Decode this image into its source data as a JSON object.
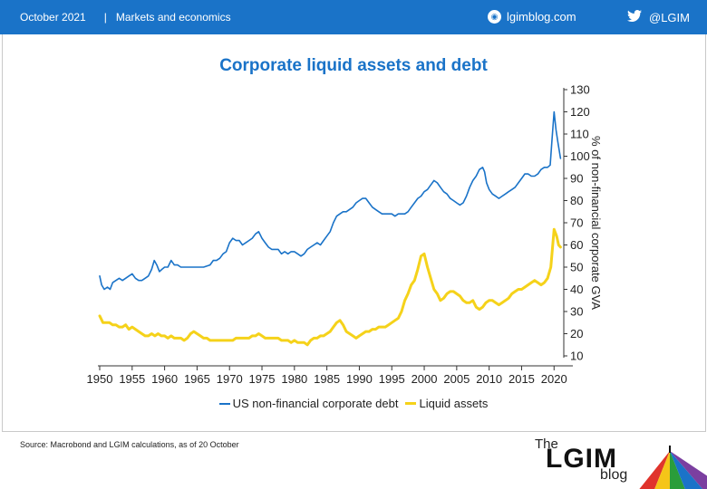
{
  "header": {
    "date": "October 2021",
    "separator": "|",
    "section": "Markets and economics",
    "site": "lgimblog.com",
    "twitter": "@LGIM",
    "colors": {
      "bar": "#1a73c8",
      "text": "#ffffff"
    }
  },
  "footer": {
    "source": "Source: Macrobond and LGIM  calculations, as of 20 October",
    "logo_the": "The",
    "logo_main": "LGIM",
    "logo_blog": "blog"
  },
  "chart_data": {
    "type": "line",
    "title": "Corporate liquid assets and debt",
    "ylabel": "% of non-financial corporate GVA",
    "xlabel": "",
    "xlim": [
      1950,
      2021.5
    ],
    "ylim": [
      10,
      130
    ],
    "yticks": [
      10,
      20,
      30,
      40,
      50,
      60,
      70,
      80,
      90,
      100,
      110,
      120,
      130
    ],
    "xticks": [
      1950,
      1955,
      1960,
      1965,
      1970,
      1975,
      1980,
      1985,
      1990,
      1995,
      2000,
      2005,
      2010,
      2015,
      2020
    ],
    "yaxis_position": "right",
    "grid": false,
    "legend": "bottom",
    "series": [
      {
        "name": "US non-financial corporate debt",
        "color": "#1a73c8",
        "points": [
          [
            1950,
            46
          ],
          [
            1950.3,
            42
          ],
          [
            1950.7,
            40
          ],
          [
            1951.2,
            41
          ],
          [
            1951.6,
            40
          ],
          [
            1952,
            43
          ],
          [
            1952.5,
            44
          ],
          [
            1953,
            45
          ],
          [
            1953.5,
            44
          ],
          [
            1954,
            45
          ],
          [
            1954.5,
            46
          ],
          [
            1955,
            47
          ],
          [
            1955.5,
            45
          ],
          [
            1956,
            44
          ],
          [
            1956.5,
            44
          ],
          [
            1957,
            45
          ],
          [
            1957.5,
            46
          ],
          [
            1958,
            49
          ],
          [
            1958.4,
            53
          ],
          [
            1958.8,
            51
          ],
          [
            1959.2,
            48
          ],
          [
            1959.6,
            49
          ],
          [
            1960,
            50
          ],
          [
            1960.5,
            50
          ],
          [
            1961,
            53
          ],
          [
            1961.5,
            51
          ],
          [
            1962,
            51
          ],
          [
            1962.5,
            50
          ],
          [
            1963,
            50
          ],
          [
            1964,
            50
          ],
          [
            1965,
            50
          ],
          [
            1966,
            50
          ],
          [
            1967,
            51
          ],
          [
            1967.5,
            53
          ],
          [
            1968,
            53
          ],
          [
            1968.5,
            54
          ],
          [
            1969,
            56
          ],
          [
            1969.5,
            57
          ],
          [
            1970,
            61
          ],
          [
            1970.5,
            63
          ],
          [
            1971,
            62
          ],
          [
            1971.5,
            62
          ],
          [
            1972,
            60
          ],
          [
            1972.5,
            61
          ],
          [
            1973,
            62
          ],
          [
            1973.5,
            63
          ],
          [
            1974,
            65
          ],
          [
            1974.5,
            66
          ],
          [
            1975,
            63
          ],
          [
            1975.5,
            61
          ],
          [
            1976,
            59
          ],
          [
            1976.5,
            58
          ],
          [
            1977,
            58
          ],
          [
            1977.5,
            58
          ],
          [
            1978,
            56
          ],
          [
            1978.5,
            57
          ],
          [
            1979,
            56
          ],
          [
            1979.5,
            57
          ],
          [
            1980,
            57
          ],
          [
            1980.5,
            56
          ],
          [
            1981,
            55
          ],
          [
            1981.5,
            56
          ],
          [
            1982,
            58
          ],
          [
            1982.5,
            59
          ],
          [
            1983,
            60
          ],
          [
            1983.5,
            61
          ],
          [
            1984,
            60
          ],
          [
            1984.5,
            62
          ],
          [
            1985,
            64
          ],
          [
            1985.5,
            66
          ],
          [
            1986,
            70
          ],
          [
            1986.5,
            73
          ],
          [
            1987,
            74
          ],
          [
            1987.5,
            75
          ],
          [
            1988,
            75
          ],
          [
            1988.5,
            76
          ],
          [
            1989,
            77
          ],
          [
            1989.5,
            79
          ],
          [
            1990,
            80
          ],
          [
            1990.5,
            81
          ],
          [
            1991,
            81
          ],
          [
            1991.5,
            79
          ],
          [
            1992,
            77
          ],
          [
            1992.5,
            76
          ],
          [
            1993,
            75
          ],
          [
            1993.5,
            74
          ],
          [
            1994,
            74
          ],
          [
            1994.5,
            74
          ],
          [
            1995,
            74
          ],
          [
            1995.5,
            73
          ],
          [
            1996,
            74
          ],
          [
            1996.5,
            74
          ],
          [
            1997,
            74
          ],
          [
            1997.5,
            75
          ],
          [
            1998,
            77
          ],
          [
            1998.5,
            79
          ],
          [
            1999,
            81
          ],
          [
            1999.5,
            82
          ],
          [
            2000,
            84
          ],
          [
            2000.5,
            85
          ],
          [
            2001,
            87
          ],
          [
            2001.5,
            89
          ],
          [
            2002,
            88
          ],
          [
            2002.5,
            86
          ],
          [
            2003,
            84
          ],
          [
            2003.5,
            83
          ],
          [
            2004,
            81
          ],
          [
            2004.5,
            80
          ],
          [
            2005,
            79
          ],
          [
            2005.5,
            78
          ],
          [
            2006,
            79
          ],
          [
            2006.5,
            82
          ],
          [
            2007,
            86
          ],
          [
            2007.5,
            89
          ],
          [
            2008,
            91
          ],
          [
            2008.5,
            94
          ],
          [
            2009,
            95
          ],
          [
            2009.3,
            93
          ],
          [
            2009.6,
            88
          ],
          [
            2010,
            85
          ],
          [
            2010.5,
            83
          ],
          [
            2011,
            82
          ],
          [
            2011.5,
            81
          ],
          [
            2012,
            82
          ],
          [
            2012.5,
            83
          ],
          [
            2013,
            84
          ],
          [
            2013.5,
            85
          ],
          [
            2014,
            86
          ],
          [
            2014.5,
            88
          ],
          [
            2015,
            90
          ],
          [
            2015.5,
            92
          ],
          [
            2016,
            92
          ],
          [
            2016.5,
            91
          ],
          [
            2017,
            91
          ],
          [
            2017.5,
            92
          ],
          [
            2018,
            94
          ],
          [
            2018.5,
            95
          ],
          [
            2019,
            95
          ],
          [
            2019.4,
            96
          ],
          [
            2019.7,
            108
          ],
          [
            2020,
            120
          ],
          [
            2020.3,
            112
          ],
          [
            2020.6,
            106
          ],
          [
            2021,
            99
          ]
        ]
      },
      {
        "name": "Liquid assets",
        "color": "#f5d21a",
        "points": [
          [
            1950,
            28
          ],
          [
            1950.5,
            25
          ],
          [
            1951,
            25
          ],
          [
            1951.5,
            25
          ],
          [
            1952,
            24
          ],
          [
            1952.5,
            24
          ],
          [
            1953,
            23
          ],
          [
            1953.5,
            23
          ],
          [
            1954,
            24
          ],
          [
            1954.5,
            22
          ],
          [
            1955,
            23
          ],
          [
            1955.5,
            22
          ],
          [
            1956,
            21
          ],
          [
            1956.5,
            20
          ],
          [
            1957,
            19
          ],
          [
            1957.5,
            19
          ],
          [
            1958,
            20
          ],
          [
            1958.5,
            19
          ],
          [
            1959,
            20
          ],
          [
            1959.5,
            19
          ],
          [
            1960,
            19
          ],
          [
            1960.5,
            18
          ],
          [
            1961,
            19
          ],
          [
            1961.5,
            18
          ],
          [
            1962,
            18
          ],
          [
            1962.5,
            18
          ],
          [
            1963,
            17
          ],
          [
            1963.5,
            18
          ],
          [
            1964,
            20
          ],
          [
            1964.5,
            21
          ],
          [
            1965,
            20
          ],
          [
            1965.5,
            19
          ],
          [
            1966,
            18
          ],
          [
            1966.5,
            18
          ],
          [
            1967,
            17
          ],
          [
            1967.5,
            17
          ],
          [
            1968,
            17
          ],
          [
            1968.5,
            17
          ],
          [
            1969,
            17
          ],
          [
            1969.5,
            17
          ],
          [
            1970,
            17
          ],
          [
            1970.5,
            17
          ],
          [
            1971,
            18
          ],
          [
            1971.5,
            18
          ],
          [
            1972,
            18
          ],
          [
            1972.5,
            18
          ],
          [
            1973,
            18
          ],
          [
            1973.5,
            19
          ],
          [
            1974,
            19
          ],
          [
            1974.5,
            20
          ],
          [
            1975,
            19
          ],
          [
            1975.5,
            18
          ],
          [
            1976,
            18
          ],
          [
            1976.5,
            18
          ],
          [
            1977,
            18
          ],
          [
            1977.5,
            18
          ],
          [
            1978,
            17
          ],
          [
            1978.5,
            17
          ],
          [
            1979,
            17
          ],
          [
            1979.5,
            16
          ],
          [
            1980,
            17
          ],
          [
            1980.5,
            16
          ],
          [
            1981,
            16
          ],
          [
            1981.5,
            16
          ],
          [
            1982,
            15
          ],
          [
            1982.5,
            17
          ],
          [
            1983,
            18
          ],
          [
            1983.5,
            18
          ],
          [
            1984,
            19
          ],
          [
            1984.5,
            19
          ],
          [
            1985,
            20
          ],
          [
            1985.5,
            21
          ],
          [
            1986,
            23
          ],
          [
            1986.5,
            25
          ],
          [
            1987,
            26
          ],
          [
            1987.5,
            24
          ],
          [
            1988,
            21
          ],
          [
            1988.5,
            20
          ],
          [
            1989,
            19
          ],
          [
            1989.5,
            18
          ],
          [
            1990,
            19
          ],
          [
            1990.5,
            20
          ],
          [
            1991,
            21
          ],
          [
            1991.5,
            21
          ],
          [
            1992,
            22
          ],
          [
            1992.5,
            22
          ],
          [
            1993,
            23
          ],
          [
            1993.5,
            23
          ],
          [
            1994,
            23
          ],
          [
            1994.5,
            24
          ],
          [
            1995,
            25
          ],
          [
            1995.5,
            26
          ],
          [
            1996,
            27
          ],
          [
            1996.5,
            30
          ],
          [
            1997,
            35
          ],
          [
            1997.5,
            38
          ],
          [
            1998,
            42
          ],
          [
            1998.5,
            44
          ],
          [
            1999,
            49
          ],
          [
            1999.5,
            55
          ],
          [
            2000,
            56
          ],
          [
            2000.5,
            50
          ],
          [
            2001,
            45
          ],
          [
            2001.5,
            40
          ],
          [
            2002,
            38
          ],
          [
            2002.5,
            35
          ],
          [
            2003,
            36
          ],
          [
            2003.5,
            38
          ],
          [
            2004,
            39
          ],
          [
            2004.5,
            39
          ],
          [
            2005,
            38
          ],
          [
            2005.5,
            37
          ],
          [
            2006,
            35
          ],
          [
            2006.5,
            34
          ],
          [
            2007,
            34
          ],
          [
            2007.5,
            35
          ],
          [
            2008,
            32
          ],
          [
            2008.5,
            31
          ],
          [
            2009,
            32
          ],
          [
            2009.5,
            34
          ],
          [
            2010,
            35
          ],
          [
            2010.5,
            35
          ],
          [
            2011,
            34
          ],
          [
            2011.5,
            33
          ],
          [
            2012,
            34
          ],
          [
            2012.5,
            35
          ],
          [
            2013,
            36
          ],
          [
            2013.5,
            38
          ],
          [
            2014,
            39
          ],
          [
            2014.5,
            40
          ],
          [
            2015,
            40
          ],
          [
            2015.5,
            41
          ],
          [
            2016,
            42
          ],
          [
            2016.5,
            43
          ],
          [
            2017,
            44
          ],
          [
            2017.5,
            43
          ],
          [
            2018,
            42
          ],
          [
            2018.5,
            43
          ],
          [
            2019,
            45
          ],
          [
            2019.5,
            50
          ],
          [
            2020,
            67
          ],
          [
            2020.4,
            64
          ],
          [
            2020.7,
            60
          ],
          [
            2021,
            59
          ]
        ]
      }
    ]
  }
}
